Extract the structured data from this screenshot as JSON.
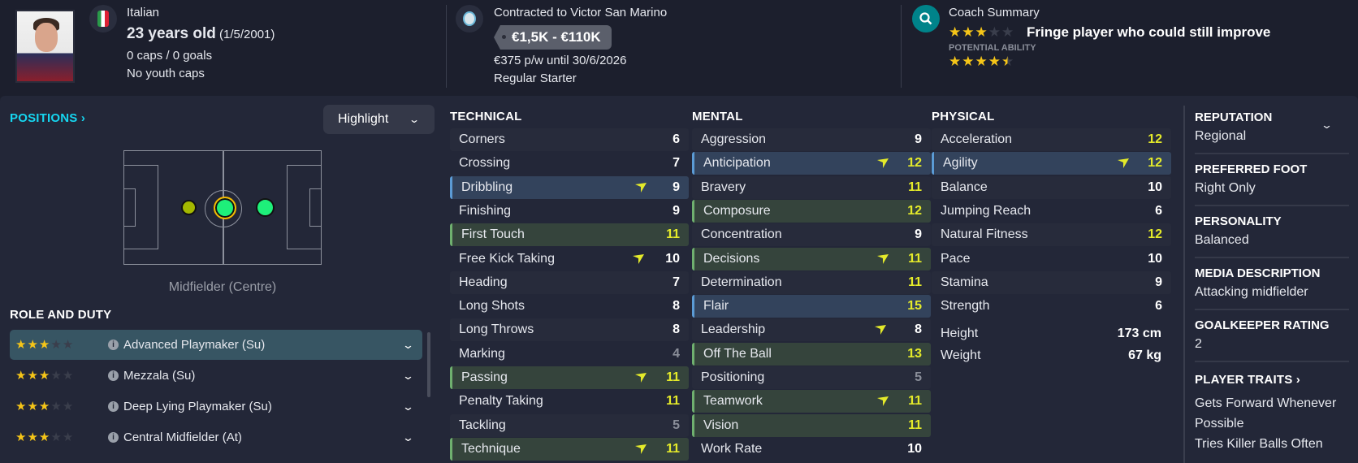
{
  "header": {
    "nationality": "Italian",
    "age": "23 years old",
    "dob": "(1/5/2001)",
    "caps": "0 caps / 0 goals",
    "youth_caps": "No youth caps",
    "contract": "Contracted to Victor San Marino",
    "value_range": "€1,5K - €110K",
    "wage": "€375 p/w until 30/6/2026",
    "squad_status": "Regular Starter",
    "coach_title": "Coach Summary",
    "current_ability_stars": 3,
    "coach_summary": "Fringe player who could still improve",
    "potential_label": "POTENTIAL ABILITY",
    "potential_ability_stars": 4.5
  },
  "positions": {
    "title": "POSITIONS",
    "highlight_label": "Highlight",
    "position_name": "Midfielder (Centre)"
  },
  "roles": {
    "title": "ROLE AND DUTY",
    "items": [
      {
        "label": "Advanced Playmaker (Su)",
        "stars": 3,
        "selected": true
      },
      {
        "label": "Mezzala (Su)",
        "stars": 3
      },
      {
        "label": "Deep Lying Playmaker (Su)",
        "stars": 3
      },
      {
        "label": "Central Midfielder (At)",
        "stars": 3
      }
    ]
  },
  "technical": {
    "title": "TECHNICAL",
    "items": [
      {
        "label": "Corners",
        "value": 6
      },
      {
        "label": "Crossing",
        "value": 7
      },
      {
        "label": "Dribbling",
        "value": 9,
        "hl": "blue",
        "arrow": true
      },
      {
        "label": "Finishing",
        "value": 9
      },
      {
        "label": "First Touch",
        "value": 11,
        "hl": "green"
      },
      {
        "label": "Free Kick Taking",
        "value": 10,
        "arrow": true
      },
      {
        "label": "Heading",
        "value": 7
      },
      {
        "label": "Long Shots",
        "value": 8
      },
      {
        "label": "Long Throws",
        "value": 8
      },
      {
        "label": "Marking",
        "value": 4
      },
      {
        "label": "Passing",
        "value": 11,
        "hl": "green",
        "arrow": true
      },
      {
        "label": "Penalty Taking",
        "value": 11
      },
      {
        "label": "Tackling",
        "value": 5
      },
      {
        "label": "Technique",
        "value": 11,
        "hl": "green",
        "arrow": true
      }
    ]
  },
  "mental": {
    "title": "MENTAL",
    "items": [
      {
        "label": "Aggression",
        "value": 9
      },
      {
        "label": "Anticipation",
        "value": 12,
        "hl": "blue",
        "arrow": true
      },
      {
        "label": "Bravery",
        "value": 11
      },
      {
        "label": "Composure",
        "value": 12,
        "hl": "green"
      },
      {
        "label": "Concentration",
        "value": 9
      },
      {
        "label": "Decisions",
        "value": 11,
        "hl": "green",
        "arrow": true
      },
      {
        "label": "Determination",
        "value": 11
      },
      {
        "label": "Flair",
        "value": 15,
        "hl": "blue"
      },
      {
        "label": "Leadership",
        "value": 8,
        "arrow": true
      },
      {
        "label": "Off The Ball",
        "value": 13,
        "hl": "green"
      },
      {
        "label": "Positioning",
        "value": 5
      },
      {
        "label": "Teamwork",
        "value": 11,
        "hl": "green",
        "arrow": true
      },
      {
        "label": "Vision",
        "value": 11,
        "hl": "green"
      },
      {
        "label": "Work Rate",
        "value": 10
      }
    ]
  },
  "physical": {
    "title": "PHYSICAL",
    "items": [
      {
        "label": "Acceleration",
        "value": 12
      },
      {
        "label": "Agility",
        "value": 12,
        "hl": "blue",
        "arrow": true
      },
      {
        "label": "Balance",
        "value": 10
      },
      {
        "label": "Jumping Reach",
        "value": 6
      },
      {
        "label": "Natural Fitness",
        "value": 12
      },
      {
        "label": "Pace",
        "value": 10
      },
      {
        "label": "Stamina",
        "value": 9
      },
      {
        "label": "Strength",
        "value": 6
      }
    ],
    "height_label": "Height",
    "height": "173 cm",
    "weight_label": "Weight",
    "weight": "67 kg"
  },
  "info": {
    "sections": [
      {
        "title": "REPUTATION",
        "value": "Regional"
      },
      {
        "title": "PREFERRED FOOT",
        "value": "Right Only"
      },
      {
        "title": "PERSONALITY",
        "value": "Balanced"
      },
      {
        "title": "MEDIA DESCRIPTION",
        "value": "Attacking midfielder"
      },
      {
        "title": "GOALKEEPER RATING",
        "value": "2"
      }
    ],
    "traits_title": "PLAYER TRAITS",
    "traits": [
      "Gets Forward Whenever Possible",
      "Tries Killer Balls Often"
    ]
  },
  "colors": {
    "highlight_value": "#e4ea2a",
    "low_value": "#8a8e99",
    "blue_row": "#33435c",
    "green_row": "#35443c",
    "accent": "#16d6f0",
    "coach_icon": "#00838a",
    "star": "#f5c518"
  }
}
